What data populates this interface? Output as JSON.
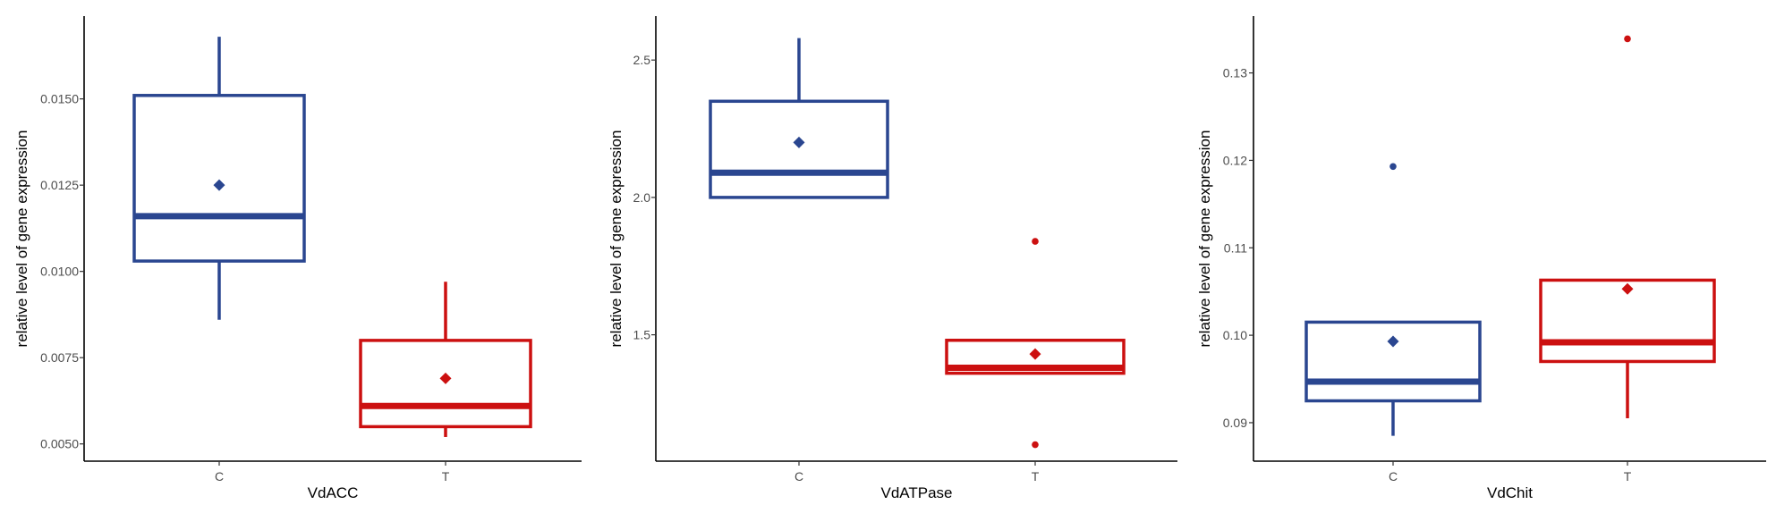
{
  "chart_data": [
    {
      "type": "box",
      "xlabel": "VdACC",
      "ylabel": "relative level of gene expression",
      "categories": [
        "C",
        "T"
      ],
      "ylim": [
        0.0045,
        0.0174
      ],
      "yticks": [
        0.005,
        0.0075,
        0.01,
        0.0125,
        0.015
      ],
      "ytick_labels": [
        "0.0050",
        "0.0075",
        "0.0100",
        "0.0125",
        "0.0150"
      ],
      "boxes": [
        {
          "category": "C",
          "color": "#2a4690",
          "whisker_low": 0.0086,
          "q1": 0.0103,
          "median": 0.0116,
          "q3": 0.0151,
          "whisker_high": 0.0168,
          "mean": 0.0125,
          "outliers": []
        },
        {
          "category": "T",
          "color": "#cc1010",
          "whisker_low": 0.0052,
          "q1": 0.0055,
          "median": 0.0061,
          "q3": 0.008,
          "whisker_high": 0.0097,
          "mean": 0.0069,
          "outliers": []
        }
      ]
    },
    {
      "type": "box",
      "xlabel": "VdATPase",
      "ylabel": "relative level of gene expression",
      "categories": [
        "C",
        "T"
      ],
      "ylim": [
        1.04,
        2.66
      ],
      "yticks": [
        1.5,
        2.0,
        2.5
      ],
      "ytick_labels": [
        "1.5",
        "2.0",
        "2.5"
      ],
      "boxes": [
        {
          "category": "C",
          "color": "#2a4690",
          "whisker_low": 2.0,
          "q1": 2.0,
          "median": 2.09,
          "q3": 2.35,
          "whisker_high": 2.58,
          "mean": 2.2,
          "outliers": []
        },
        {
          "category": "T",
          "color": "#cc1010",
          "whisker_low": 1.36,
          "q1": 1.36,
          "median": 1.38,
          "q3": 1.48,
          "whisker_high": 1.48,
          "mean": 1.43,
          "outliers": [
            1.84,
            1.1
          ]
        }
      ]
    },
    {
      "type": "box",
      "xlabel": "VdChit",
      "ylabel": "relative level of gene expression",
      "categories": [
        "C",
        "T"
      ],
      "ylim": [
        0.0856,
        0.1365
      ],
      "yticks": [
        0.09,
        0.1,
        0.11,
        0.12,
        0.13
      ],
      "ytick_labels": [
        "0.09",
        "0.10",
        "0.11",
        "0.12",
        "0.13"
      ],
      "boxes": [
        {
          "category": "C",
          "color": "#2a4690",
          "whisker_low": 0.0885,
          "q1": 0.0925,
          "median": 0.0947,
          "q3": 0.1015,
          "whisker_high": 0.1015,
          "mean": 0.0993,
          "outliers": [
            0.1193
          ]
        },
        {
          "category": "T",
          "color": "#cc1010",
          "whisker_low": 0.0905,
          "q1": 0.097,
          "median": 0.0992,
          "q3": 0.1063,
          "whisker_high": 0.1063,
          "mean": 0.1053,
          "outliers": [
            0.1339
          ]
        }
      ]
    }
  ]
}
